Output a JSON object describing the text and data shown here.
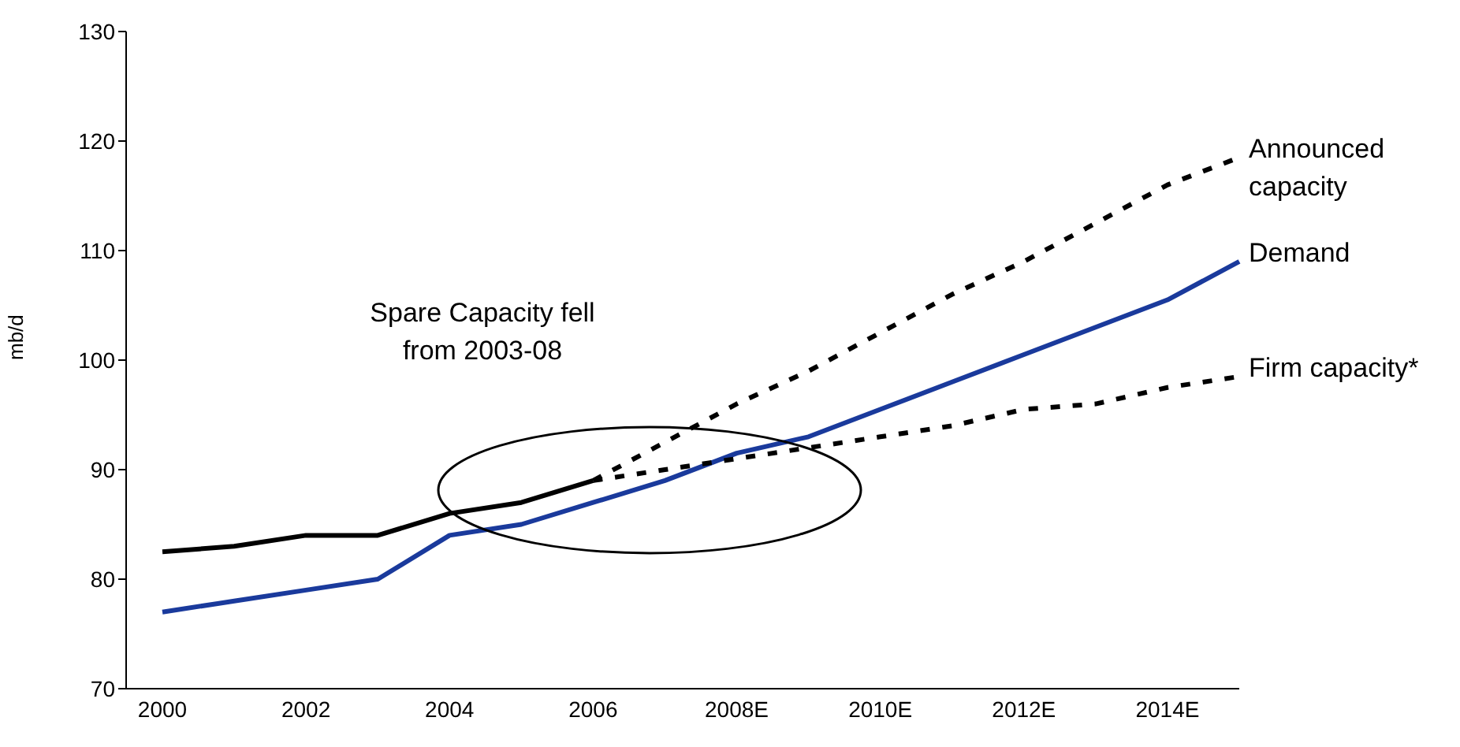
{
  "chart_data": {
    "type": "line",
    "ylabel": "mb/d",
    "categories": [
      "2000",
      null,
      "2002",
      null,
      "2004",
      null,
      "2006",
      null,
      "2008E",
      null,
      "2010E",
      null,
      "2012E",
      null,
      "2014E",
      null
    ],
    "series": [
      {
        "color": "#000000",
        "line_style": "solid",
        "values": [
          82.5,
          83,
          84,
          84,
          86,
          87,
          89,
          null,
          null,
          null,
          null,
          null,
          null,
          null,
          null,
          null
        ]
      },
      {
        "name": "Announced capacity",
        "color": "#000000",
        "line_style": "dashed",
        "values": [
          null,
          null,
          null,
          null,
          null,
          null,
          89,
          92.5,
          96,
          99,
          102.5,
          106,
          109,
          112.5,
          116,
          118.5
        ]
      },
      {
        "name": "Demand",
        "color": "#1a3a9c",
        "line_style": "solid",
        "values": [
          77,
          78,
          79,
          80,
          84,
          85,
          87,
          89,
          91.5,
          93,
          95.5,
          98,
          100.5,
          103,
          105.5,
          109
        ]
      },
      {
        "name": "Firm capacity*",
        "color": "#000000",
        "line_style": "dashed",
        "values": [
          null,
          null,
          null,
          null,
          null,
          null,
          89,
          90,
          91,
          92,
          93,
          94,
          95.5,
          96,
          97.5,
          98.5
        ]
      }
    ],
    "ylim": [
      70,
      130
    ],
    "yticks": [
      70,
      80,
      90,
      100,
      110,
      120,
      130
    ],
    "grid": false,
    "legend": false,
    "marker": "none",
    "annotations": [
      "Spare Capacity fell from 2003-08"
    ]
  }
}
